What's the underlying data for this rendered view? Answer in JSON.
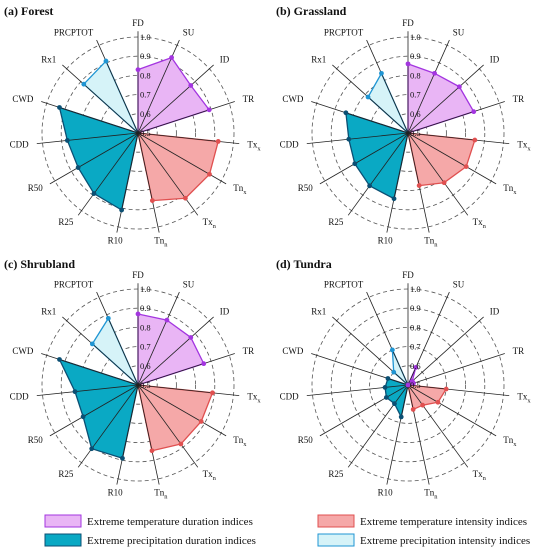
{
  "figure": {
    "legend": [
      {
        "label": "Extreme temperature duration indices",
        "fill": "#e9b5f5",
        "stroke": "#a335e0"
      },
      {
        "label": "Extreme precipitation duration indices",
        "fill": "#0aa9c4",
        "stroke": "#0b4f73"
      },
      {
        "label": "Extreme temperature intensity indices",
        "fill": "#f5a8a8",
        "stroke": "#e05050"
      },
      {
        "label": "Extreme precipitation intensity indices",
        "fill": "#d6f3f8",
        "stroke": "#1f95d3"
      }
    ]
  },
  "colors": {
    "temp_duration": {
      "fill": "#e9b5f5",
      "stroke": "#a335e0"
    },
    "temp_intensity": {
      "fill": "#f5a8a8",
      "stroke": "#e05050"
    },
    "precip_duration": {
      "fill": "#0aa9c4",
      "stroke": "#0b4f73"
    },
    "precip_intensity": {
      "fill": "#d6f3f8",
      "stroke": "#1f95d3"
    }
  },
  "chart_data": [
    {
      "type": "radar",
      "title": "(a) Forest",
      "categories": [
        "FD",
        "SU",
        "ID",
        "TR",
        "Txx",
        "Tnx",
        "Txn",
        "Tnn",
        "R10",
        "R25",
        "R50",
        "CDD",
        "CWD",
        "Rx1",
        "PRCPTOT"
      ],
      "category_display": [
        {
          "base": "FD",
          "sub": ""
        },
        {
          "base": "SU",
          "sub": ""
        },
        {
          "base": "ID",
          "sub": ""
        },
        {
          "base": "TR",
          "sub": ""
        },
        {
          "base": "Tx",
          "sub": "x"
        },
        {
          "base": "Tn",
          "sub": "x"
        },
        {
          "base": "Tx",
          "sub": "n"
        },
        {
          "base": "Tn",
          "sub": "n"
        },
        {
          "base": "R10",
          "sub": ""
        },
        {
          "base": "R25",
          "sub": ""
        },
        {
          "base": "R50",
          "sub": ""
        },
        {
          "base": "CDD",
          "sub": ""
        },
        {
          "base": "CWD",
          "sub": ""
        },
        {
          "base": "Rx1",
          "sub": ""
        },
        {
          "base": "PRCPTOT",
          "sub": ""
        }
      ],
      "radial_ticks": [
        "0.5",
        "0.6",
        "0.7",
        "0.8",
        "0.9",
        "1.0"
      ],
      "rlim": [
        0.5,
        1.0
      ],
      "groups": [
        {
          "name": "Extreme temperature duration indices",
          "indices": [
            "FD",
            "SU",
            "ID",
            "TR"
          ],
          "values": [
            0.83,
            0.93,
            0.87,
            0.89
          ]
        },
        {
          "name": "Extreme temperature intensity indices",
          "indices": [
            "Txx",
            "Tnx",
            "Txn",
            "Tnn"
          ],
          "values": [
            0.92,
            0.93,
            0.92,
            0.86
          ]
        },
        {
          "name": "Extreme precipitation duration indices",
          "indices": [
            "R10",
            "R25",
            "R50",
            "CDD",
            "CWD"
          ],
          "values": [
            0.91,
            0.89,
            0.86,
            0.87,
            0.93
          ]
        },
        {
          "name": "Extreme precipitation intensity indices",
          "indices": [
            "Rx1",
            "PRCPTOT"
          ],
          "values": [
            0.88,
            0.91
          ]
        }
      ]
    },
    {
      "type": "radar",
      "title": "(b) Grassland",
      "categories": [
        "FD",
        "SU",
        "ID",
        "TR",
        "Txx",
        "Tnx",
        "Txn",
        "Tnn",
        "R10",
        "R25",
        "R50",
        "CDD",
        "CWD",
        "Rx1",
        "PRCPTOT"
      ],
      "category_display": [
        {
          "base": "FD",
          "sub": ""
        },
        {
          "base": "SU",
          "sub": ""
        },
        {
          "base": "ID",
          "sub": ""
        },
        {
          "base": "TR",
          "sub": ""
        },
        {
          "base": "Tx",
          "sub": "x"
        },
        {
          "base": "Tn",
          "sub": "x"
        },
        {
          "base": "Tx",
          "sub": "n"
        },
        {
          "base": "Tn",
          "sub": "n"
        },
        {
          "base": "R10",
          "sub": ""
        },
        {
          "base": "R25",
          "sub": ""
        },
        {
          "base": "R50",
          "sub": ""
        },
        {
          "base": "CDD",
          "sub": ""
        },
        {
          "base": "CWD",
          "sub": ""
        },
        {
          "base": "Rx1",
          "sub": ""
        },
        {
          "base": "PRCPTOT",
          "sub": ""
        }
      ],
      "radial_ticks": [
        "0.5",
        "0.6",
        "0.7",
        "0.8",
        "0.9",
        "1.0"
      ],
      "rlim": [
        0.5,
        1.0
      ],
      "groups": [
        {
          "name": "Extreme temperature duration indices",
          "indices": [
            "FD",
            "SU",
            "ID",
            "TR"
          ],
          "values": [
            0.86,
            0.84,
            0.86,
            0.86
          ]
        },
        {
          "name": "Extreme temperature intensity indices",
          "indices": [
            "Txx",
            "Tnx",
            "Txn",
            "Tnn"
          ],
          "values": [
            0.85,
            0.85,
            0.82,
            0.78
          ]
        },
        {
          "name": "Extreme precipitation duration indices",
          "indices": [
            "R10",
            "R25",
            "R50",
            "CDD",
            "CWD"
          ],
          "values": [
            0.85,
            0.84,
            0.82,
            0.81,
            0.84
          ]
        },
        {
          "name": "Extreme precipitation intensity indices",
          "indices": [
            "Rx1",
            "PRCPTOT"
          ],
          "values": [
            0.78,
            0.84
          ]
        }
      ]
    },
    {
      "type": "radar",
      "title": "(c) Shrubland",
      "categories": [
        "FD",
        "SU",
        "ID",
        "TR",
        "Txx",
        "Tnx",
        "Txn",
        "Tnn",
        "R10",
        "R25",
        "R50",
        "CDD",
        "CWD",
        "Rx1",
        "PRCPTOT"
      ],
      "category_display": [
        {
          "base": "FD",
          "sub": ""
        },
        {
          "base": "SU",
          "sub": ""
        },
        {
          "base": "ID",
          "sub": ""
        },
        {
          "base": "TR",
          "sub": ""
        },
        {
          "base": "Tx",
          "sub": "x"
        },
        {
          "base": "Tn",
          "sub": "x"
        },
        {
          "base": "Tx",
          "sub": "n"
        },
        {
          "base": "Tn",
          "sub": "n"
        },
        {
          "base": "R10",
          "sub": ""
        },
        {
          "base": "R25",
          "sub": ""
        },
        {
          "base": "R50",
          "sub": ""
        },
        {
          "base": "CDD",
          "sub": ""
        },
        {
          "base": "CWD",
          "sub": ""
        },
        {
          "base": "Rx1",
          "sub": ""
        },
        {
          "base": "PRCPTOT",
          "sub": ""
        }
      ],
      "radial_ticks": [
        "0.5",
        "0.6",
        "0.7",
        "0.8",
        "0.9",
        "1.0"
      ],
      "rlim": [
        0.5,
        1.0
      ],
      "groups": [
        {
          "name": "Extreme temperature duration indices",
          "indices": [
            "FD",
            "SU",
            "ID",
            "TR"
          ],
          "values": [
            0.87,
            0.87,
            0.87,
            0.86
          ]
        },
        {
          "name": "Extreme temperature intensity indices",
          "indices": [
            "Txx",
            "Tnx",
            "Txn",
            "Tnn"
          ],
          "values": [
            0.89,
            0.88,
            0.88,
            0.85
          ]
        },
        {
          "name": "Extreme precipitation duration indices",
          "indices": [
            "R10",
            "R25",
            "R50",
            "CDD",
            "CWD"
          ],
          "values": [
            0.89,
            0.91,
            0.83,
            0.83,
            0.93
          ]
        },
        {
          "name": "Extreme precipitation intensity indices",
          "indices": [
            "Rx1",
            "PRCPTOT"
          ],
          "values": [
            0.82,
            0.88
          ]
        }
      ]
    },
    {
      "type": "radar",
      "title": "(d) Tundra",
      "categories": [
        "FD",
        "SU",
        "ID",
        "TR",
        "Txx",
        "Tnx",
        "Txn",
        "Tnn",
        "R10",
        "R25",
        "R50",
        "CDD",
        "CWD",
        "Rx1",
        "PRCPTOT"
      ],
      "category_display": [
        {
          "base": "FD",
          "sub": ""
        },
        {
          "base": "SU",
          "sub": ""
        },
        {
          "base": "ID",
          "sub": ""
        },
        {
          "base": "TR",
          "sub": ""
        },
        {
          "base": "Tx",
          "sub": "x"
        },
        {
          "base": "Tn",
          "sub": "x"
        },
        {
          "base": "Tx",
          "sub": "n"
        },
        {
          "base": "Tn",
          "sub": "n"
        },
        {
          "base": "R10",
          "sub": ""
        },
        {
          "base": "R25",
          "sub": ""
        },
        {
          "base": "R50",
          "sub": ""
        },
        {
          "base": "CDD",
          "sub": ""
        },
        {
          "base": "CWD",
          "sub": ""
        },
        {
          "base": "Rx1",
          "sub": ""
        },
        {
          "base": "PRCPTOT",
          "sub": ""
        }
      ],
      "radial_ticks": [
        "0.5",
        "0.6",
        "0.7",
        "0.8",
        "0.9",
        "1.0"
      ],
      "rlim": [
        0.5,
        1.0
      ],
      "groups": [
        {
          "name": "Extreme temperature duration indices",
          "indices": [
            "FD",
            "SU",
            "ID",
            "TR"
          ],
          "values": [
            0.5,
            0.6,
            0.53,
            0.53
          ]
        },
        {
          "name": "Extreme temperature intensity indices",
          "indices": [
            "Txx",
            "Tnx",
            "Txn",
            "Tnn"
          ],
          "values": [
            0.7,
            0.68,
            0.63,
            0.63
          ]
        },
        {
          "name": "Extreme precipitation duration indices",
          "indices": [
            "R10",
            "R25",
            "R50",
            "CDD",
            "CWD"
          ],
          "values": [
            0.67,
            0.62,
            0.63,
            0.62,
            0.61
          ]
        },
        {
          "name": "Extreme precipitation intensity indices",
          "indices": [
            "Rx1",
            "PRCPTOT"
          ],
          "values": [
            0.6,
            0.7
          ]
        }
      ]
    }
  ]
}
